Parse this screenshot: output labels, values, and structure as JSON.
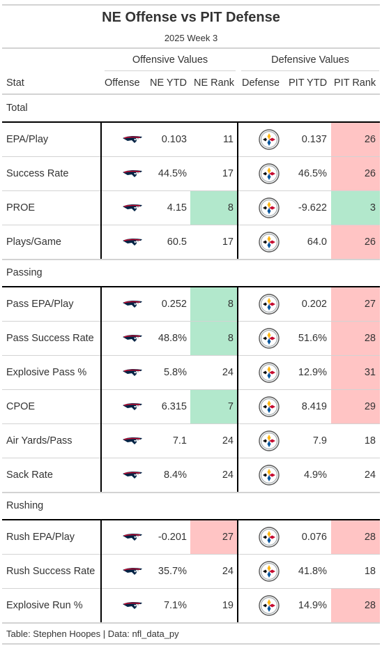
{
  "title": "NE Offense vs PIT Defense",
  "subtitle": "2025 Week 3",
  "spanners": {
    "offense": "Offensive Values",
    "defense": "Defensive Values"
  },
  "columns": {
    "stat": "Stat",
    "offense": "Offense",
    "ne_ytd": "NE YTD",
    "ne_rank": "NE Rank",
    "defense": "Defense",
    "pit_ytd": "PIT YTD",
    "pit_rank": "PIT Rank"
  },
  "icons": {
    "offense_logo": "patriots-logo-icon",
    "defense_logo": "steelers-logo-icon"
  },
  "colors": {
    "good": "#b2e8cc",
    "bad": "#ffc4c4",
    "neutral": "#ffffff"
  },
  "groups": [
    {
      "name": "Total",
      "rows": [
        {
          "stat": "EPA/Play",
          "ne_ytd": "0.103",
          "ne_rank": "11",
          "pit_ytd": "0.137",
          "pit_rank": "26",
          "ne_shade": "neutral",
          "pit_shade": "bad"
        },
        {
          "stat": "Success Rate",
          "ne_ytd": "44.5%",
          "ne_rank": "17",
          "pit_ytd": "46.5%",
          "pit_rank": "26",
          "ne_shade": "neutral",
          "pit_shade": "bad"
        },
        {
          "stat": "PROE",
          "ne_ytd": "4.15",
          "ne_rank": "8",
          "pit_ytd": "-9.622",
          "pit_rank": "3",
          "ne_shade": "good",
          "pit_shade": "good"
        },
        {
          "stat": "Plays/Game",
          "ne_ytd": "60.5",
          "ne_rank": "17",
          "pit_ytd": "64.0",
          "pit_rank": "26",
          "ne_shade": "neutral",
          "pit_shade": "bad"
        }
      ]
    },
    {
      "name": "Passing",
      "rows": [
        {
          "stat": "Pass EPA/Play",
          "ne_ytd": "0.252",
          "ne_rank": "8",
          "pit_ytd": "0.202",
          "pit_rank": "27",
          "ne_shade": "good",
          "pit_shade": "bad"
        },
        {
          "stat": "Pass Success Rate",
          "ne_ytd": "48.8%",
          "ne_rank": "8",
          "pit_ytd": "51.6%",
          "pit_rank": "28",
          "ne_shade": "good",
          "pit_shade": "bad"
        },
        {
          "stat": "Explosive Pass %",
          "ne_ytd": "5.8%",
          "ne_rank": "24",
          "pit_ytd": "12.9%",
          "pit_rank": "31",
          "ne_shade": "neutral",
          "pit_shade": "bad"
        },
        {
          "stat": "CPOE",
          "ne_ytd": "6.315",
          "ne_rank": "7",
          "pit_ytd": "8.419",
          "pit_rank": "29",
          "ne_shade": "good",
          "pit_shade": "bad"
        },
        {
          "stat": "Air Yards/Pass",
          "ne_ytd": "7.1",
          "ne_rank": "24",
          "pit_ytd": "7.9",
          "pit_rank": "18",
          "ne_shade": "neutral",
          "pit_shade": "neutral"
        },
        {
          "stat": "Sack Rate",
          "ne_ytd": "8.4%",
          "ne_rank": "24",
          "pit_ytd": "4.9%",
          "pit_rank": "24",
          "ne_shade": "neutral",
          "pit_shade": "neutral"
        }
      ]
    },
    {
      "name": "Rushing",
      "rows": [
        {
          "stat": "Rush EPA/Play",
          "ne_ytd": "-0.201",
          "ne_rank": "27",
          "pit_ytd": "0.076",
          "pit_rank": "28",
          "ne_shade": "bad",
          "pit_shade": "bad"
        },
        {
          "stat": "Rush Success Rate",
          "ne_ytd": "35.7%",
          "ne_rank": "24",
          "pit_ytd": "41.8%",
          "pit_rank": "18",
          "ne_shade": "neutral",
          "pit_shade": "neutral"
        },
        {
          "stat": "Explosive Run %",
          "ne_ytd": "7.1%",
          "ne_rank": "19",
          "pit_ytd": "14.9%",
          "pit_rank": "28",
          "ne_shade": "neutral",
          "pit_shade": "bad"
        }
      ]
    }
  ],
  "footer": "Table: Stephen Hoopes | Data: nfl_data_py"
}
